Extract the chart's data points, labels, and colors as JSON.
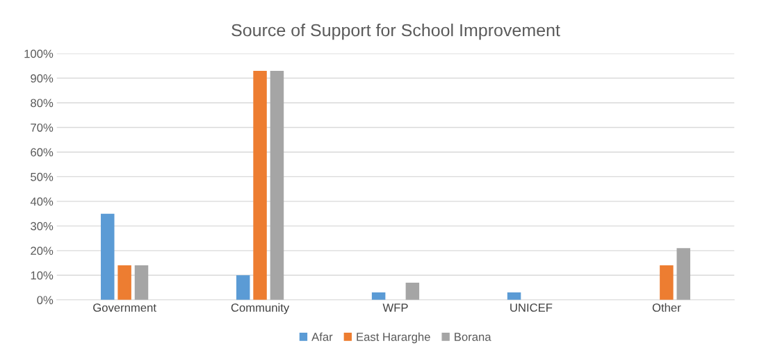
{
  "chart_data": {
    "type": "bar",
    "title": "Source of Support for School Improvement",
    "categories": [
      "Government",
      "Community",
      "WFP",
      "UNICEF",
      "Other"
    ],
    "series": [
      {
        "name": "Afar",
        "color": "#5b9bd5",
        "values": [
          35,
          10,
          3,
          3,
          0
        ]
      },
      {
        "name": "East Hararghe",
        "color": "#ed7d31",
        "values": [
          14,
          93,
          0,
          0,
          14
        ]
      },
      {
        "name": "Borana",
        "color": "#a5a5a5",
        "values": [
          14,
          93,
          7,
          0,
          21
        ]
      }
    ],
    "ylim": [
      0,
      100
    ],
    "yticks": [
      {
        "value": 0,
        "label": "0%"
      },
      {
        "value": 10,
        "label": "10%"
      },
      {
        "value": 20,
        "label": "20%"
      },
      {
        "value": 30,
        "label": "30%"
      },
      {
        "value": 40,
        "label": "40%"
      },
      {
        "value": 50,
        "label": "50%"
      },
      {
        "value": 60,
        "label": "60%"
      },
      {
        "value": 70,
        "label": "70%"
      },
      {
        "value": 80,
        "label": "80%"
      },
      {
        "value": 90,
        "label": "90%"
      },
      {
        "value": 100,
        "label": "100%"
      }
    ],
    "grid": "y",
    "legend": "bottom"
  }
}
